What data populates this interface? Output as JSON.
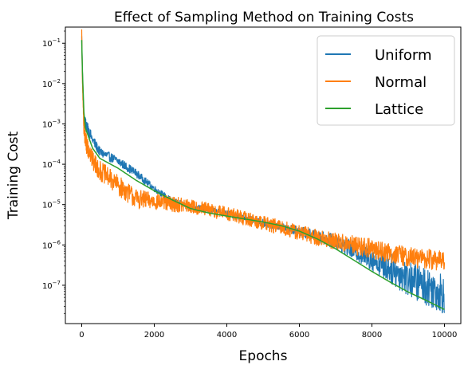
{
  "chart_data": {
    "type": "line",
    "title": "Effect of Sampling Method on Training Costs",
    "xlabel": "Epochs",
    "ylabel": "Training Cost",
    "xlim": [
      -450,
      10450
    ],
    "ylim_log10": [
      -7.95,
      -0.6
    ],
    "yscale": "log",
    "grid": false,
    "legend_position": "top-right",
    "x_ticks": [
      {
        "value": 0,
        "label": "0"
      },
      {
        "value": 2000,
        "label": "2000"
      },
      {
        "value": 4000,
        "label": "4000"
      },
      {
        "value": 6000,
        "label": "6000"
      },
      {
        "value": 8000,
        "label": "8000"
      },
      {
        "value": 10000,
        "label": "10000"
      }
    ],
    "y_ticks": [
      {
        "exp": -1,
        "base": "10",
        "sup": "−1"
      },
      {
        "exp": -2,
        "base": "10",
        "sup": "−2"
      },
      {
        "exp": -3,
        "base": "10",
        "sup": "−3"
      },
      {
        "exp": -4,
        "base": "10",
        "sup": "−4"
      },
      {
        "exp": -5,
        "base": "10",
        "sup": "−5"
      },
      {
        "exp": -6,
        "base": "10",
        "sup": "−6"
      },
      {
        "exp": -7,
        "base": "10",
        "sup": "−7"
      }
    ],
    "series": [
      {
        "name": "Uniform",
        "color": "#1f77b4",
        "noise_band": [
          [
            0,
            0
          ],
          [
            100,
            0.15
          ],
          [
            500,
            0.12
          ],
          [
            1500,
            0.1
          ],
          [
            2000,
            0.08
          ],
          [
            3000,
            0.08
          ],
          [
            4000,
            0.08
          ],
          [
            5000,
            0.09
          ],
          [
            6000,
            0.12
          ],
          [
            7000,
            0.18
          ],
          [
            8000,
            0.3
          ],
          [
            9000,
            0.45
          ],
          [
            10000,
            0.5
          ]
        ],
        "points": [
          [
            0,
            0.15
          ],
          [
            20,
            0.02
          ],
          [
            60,
            0.0015
          ],
          [
            100,
            0.001
          ],
          [
            300,
            0.0004
          ],
          [
            500,
            0.0002
          ],
          [
            1000,
            0.00012
          ],
          [
            1500,
            6e-05
          ],
          [
            2000,
            2.5e-05
          ],
          [
            2500,
            1.2e-05
          ],
          [
            3000,
            9e-06
          ],
          [
            4000,
            6e-06
          ],
          [
            5000,
            3.5e-06
          ],
          [
            6000,
            2.2e-06
          ],
          [
            7000,
            1.2e-06
          ],
          [
            8000,
            4.5e-07
          ],
          [
            9000,
            1.5e-07
          ],
          [
            10000,
            6e-08
          ]
        ]
      },
      {
        "name": "Normal",
        "color": "#ff7f0e",
        "noise_band": [
          [
            0,
            0
          ],
          [
            100,
            0.25
          ],
          [
            500,
            0.25
          ],
          [
            1500,
            0.25
          ],
          [
            2000,
            0.2
          ],
          [
            3000,
            0.18
          ],
          [
            4000,
            0.18
          ],
          [
            5000,
            0.18
          ],
          [
            6000,
            0.2
          ],
          [
            7000,
            0.22
          ],
          [
            8000,
            0.25
          ],
          [
            9000,
            0.25
          ],
          [
            10000,
            0.25
          ]
        ],
        "points": [
          [
            0,
            0.22
          ],
          [
            20,
            0.01
          ],
          [
            60,
            0.0008
          ],
          [
            100,
            0.0004
          ],
          [
            300,
            0.00012
          ],
          [
            500,
            7e-05
          ],
          [
            1000,
            3e-05
          ],
          [
            1500,
            1.4e-05
          ],
          [
            2000,
            1.2e-05
          ],
          [
            3000,
            9e-06
          ],
          [
            4000,
            6e-06
          ],
          [
            5000,
            3.5e-06
          ],
          [
            6000,
            2e-06
          ],
          [
            7000,
            1.2e-06
          ],
          [
            8000,
            8e-07
          ],
          [
            9000,
            5e-07
          ],
          [
            10000,
            4e-07
          ]
        ]
      },
      {
        "name": "Lattice",
        "color": "#2ca02c",
        "noise_band": [
          [
            0,
            0
          ],
          [
            10000,
            0
          ]
        ],
        "points": [
          [
            0,
            0.12
          ],
          [
            20,
            0.02
          ],
          [
            60,
            0.002
          ],
          [
            100,
            0.0008
          ],
          [
            300,
            0.00025
          ],
          [
            500,
            0.00014
          ],
          [
            1000,
            8e-05
          ],
          [
            1500,
            4e-05
          ],
          [
            2000,
            2.2e-05
          ],
          [
            2500,
            1.3e-05
          ],
          [
            3000,
            8e-06
          ],
          [
            3500,
            6.2e-06
          ],
          [
            4000,
            5.2e-06
          ],
          [
            4500,
            4.4e-06
          ],
          [
            5000,
            3.7e-06
          ],
          [
            5500,
            3e-06
          ],
          [
            6000,
            2.2e-06
          ],
          [
            6500,
            1.4e-06
          ],
          [
            7000,
            8e-07
          ],
          [
            7500,
            4.2e-07
          ],
          [
            8000,
            2.2e-07
          ],
          [
            8500,
            1.2e-07
          ],
          [
            9000,
            6.8e-08
          ],
          [
            9500,
            4.2e-08
          ],
          [
            10000,
            2.5e-08
          ]
        ]
      }
    ]
  }
}
